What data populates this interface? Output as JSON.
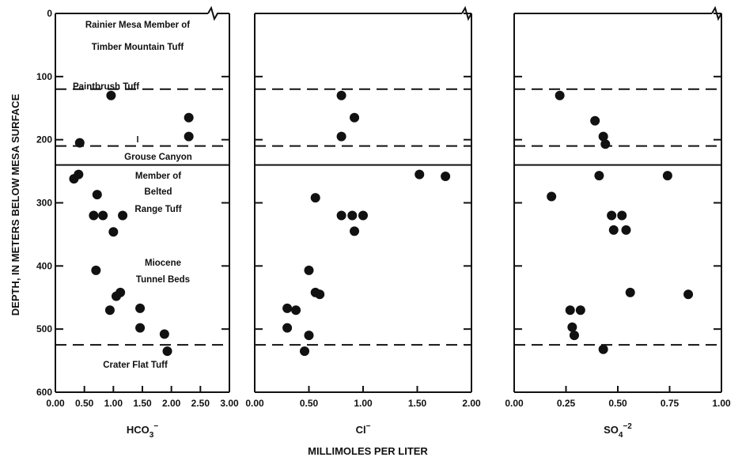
{
  "chart_data": {
    "type": "scatter",
    "ylabel": "DEPTH, IN METERS BELOW MESA SURFACE",
    "xlabel": "MILLIMOLES PER LITER",
    "ylim": [
      600,
      0
    ],
    "y_ticks": [
      "0",
      "100",
      "200",
      "300",
      "400",
      "500",
      "600"
    ],
    "horizontal_lines": [
      {
        "depth": 120,
        "style": "dashed"
      },
      {
        "depth": 210,
        "style": "dashed"
      },
      {
        "depth": 240,
        "style": "solid"
      },
      {
        "depth": 525,
        "style": "dashed"
      }
    ],
    "annotations": [
      {
        "text": "Rainier Mesa Member of",
        "depth": 85
      },
      {
        "text": "Timber Mountain Tuff",
        "depth": 114
      },
      {
        "text": "Paintbrush Tuff",
        "depth": 170
      },
      {
        "text": "Grouse Canyon",
        "depth": 263
      },
      {
        "text": "Member of",
        "depth": 288
      },
      {
        "text": "Belted",
        "depth": 312
      },
      {
        "text": "Range Tuff",
        "depth": 336
      },
      {
        "text": "Miocene",
        "depth": 422
      },
      {
        "text": "Tunnel Beds",
        "depth": 445
      },
      {
        "text": "Crater Flat Tuff",
        "depth": 560
      }
    ],
    "panels": [
      {
        "xlabel_main": "HCO",
        "xlabel_sub": "3",
        "xlabel_sup": "−",
        "xlim": [
          0,
          3
        ],
        "x_ticks": [
          "0.00",
          "0.50",
          "1.00",
          "1.50",
          "2.00",
          "2.50",
          "3.00"
        ],
        "points": [
          {
            "x": 0.96,
            "y": 130
          },
          {
            "x": 2.3,
            "y": 165
          },
          {
            "x": 2.3,
            "y": 195
          },
          {
            "x": 0.42,
            "y": 205
          },
          {
            "x": 0.4,
            "y": 255
          },
          {
            "x": 0.32,
            "y": 262
          },
          {
            "x": 0.72,
            "y": 287
          },
          {
            "x": 0.66,
            "y": 320
          },
          {
            "x": 0.82,
            "y": 320
          },
          {
            "x": 1.16,
            "y": 320
          },
          {
            "x": 1.0,
            "y": 346
          },
          {
            "x": 0.7,
            "y": 407
          },
          {
            "x": 1.12,
            "y": 442
          },
          {
            "x": 1.05,
            "y": 448
          },
          {
            "x": 1.46,
            "y": 467
          },
          {
            "x": 0.94,
            "y": 470
          },
          {
            "x": 1.46,
            "y": 498
          },
          {
            "x": 1.88,
            "y": 508
          },
          {
            "x": 1.93,
            "y": 535
          }
        ]
      },
      {
        "xlabel_main": "Cl",
        "xlabel_sub": "",
        "xlabel_sup": "−",
        "xlim": [
          0,
          2
        ],
        "x_ticks": [
          "0.00",
          "0.50",
          "1.00",
          "1.50",
          "2.00"
        ],
        "points": [
          {
            "x": 0.8,
            "y": 130
          },
          {
            "x": 0.92,
            "y": 165
          },
          {
            "x": 0.8,
            "y": 195
          },
          {
            "x": 1.52,
            "y": 255
          },
          {
            "x": 1.76,
            "y": 258
          },
          {
            "x": 0.56,
            "y": 292
          },
          {
            "x": 0.8,
            "y": 320
          },
          {
            "x": 0.9,
            "y": 320
          },
          {
            "x": 1.0,
            "y": 320
          },
          {
            "x": 0.92,
            "y": 345
          },
          {
            "x": 0.5,
            "y": 407
          },
          {
            "x": 0.56,
            "y": 442
          },
          {
            "x": 0.6,
            "y": 445
          },
          {
            "x": 0.3,
            "y": 467
          },
          {
            "x": 0.38,
            "y": 470
          },
          {
            "x": 0.3,
            "y": 498
          },
          {
            "x": 0.5,
            "y": 510
          },
          {
            "x": 0.46,
            "y": 535
          }
        ]
      },
      {
        "xlabel_main": "SO",
        "xlabel_sub": "4",
        "xlabel_sup": "−2",
        "xlim": [
          0,
          1
        ],
        "x_ticks": [
          "0.00",
          "0.25",
          "0.50",
          "0.75",
          "1.00"
        ],
        "points": [
          {
            "x": 0.22,
            "y": 130
          },
          {
            "x": 0.39,
            "y": 170
          },
          {
            "x": 0.43,
            "y": 195
          },
          {
            "x": 0.44,
            "y": 207
          },
          {
            "x": 0.41,
            "y": 257
          },
          {
            "x": 0.74,
            "y": 257
          },
          {
            "x": 0.18,
            "y": 290
          },
          {
            "x": 0.47,
            "y": 320
          },
          {
            "x": 0.52,
            "y": 320
          },
          {
            "x": 0.48,
            "y": 343
          },
          {
            "x": 0.54,
            "y": 343
          },
          {
            "x": 0.56,
            "y": 442
          },
          {
            "x": 0.84,
            "y": 445
          },
          {
            "x": 0.27,
            "y": 470
          },
          {
            "x": 0.32,
            "y": 470
          },
          {
            "x": 0.28,
            "y": 497
          },
          {
            "x": 0.29,
            "y": 510
          },
          {
            "x": 0.43,
            "y": 532
          }
        ]
      }
    ]
  }
}
